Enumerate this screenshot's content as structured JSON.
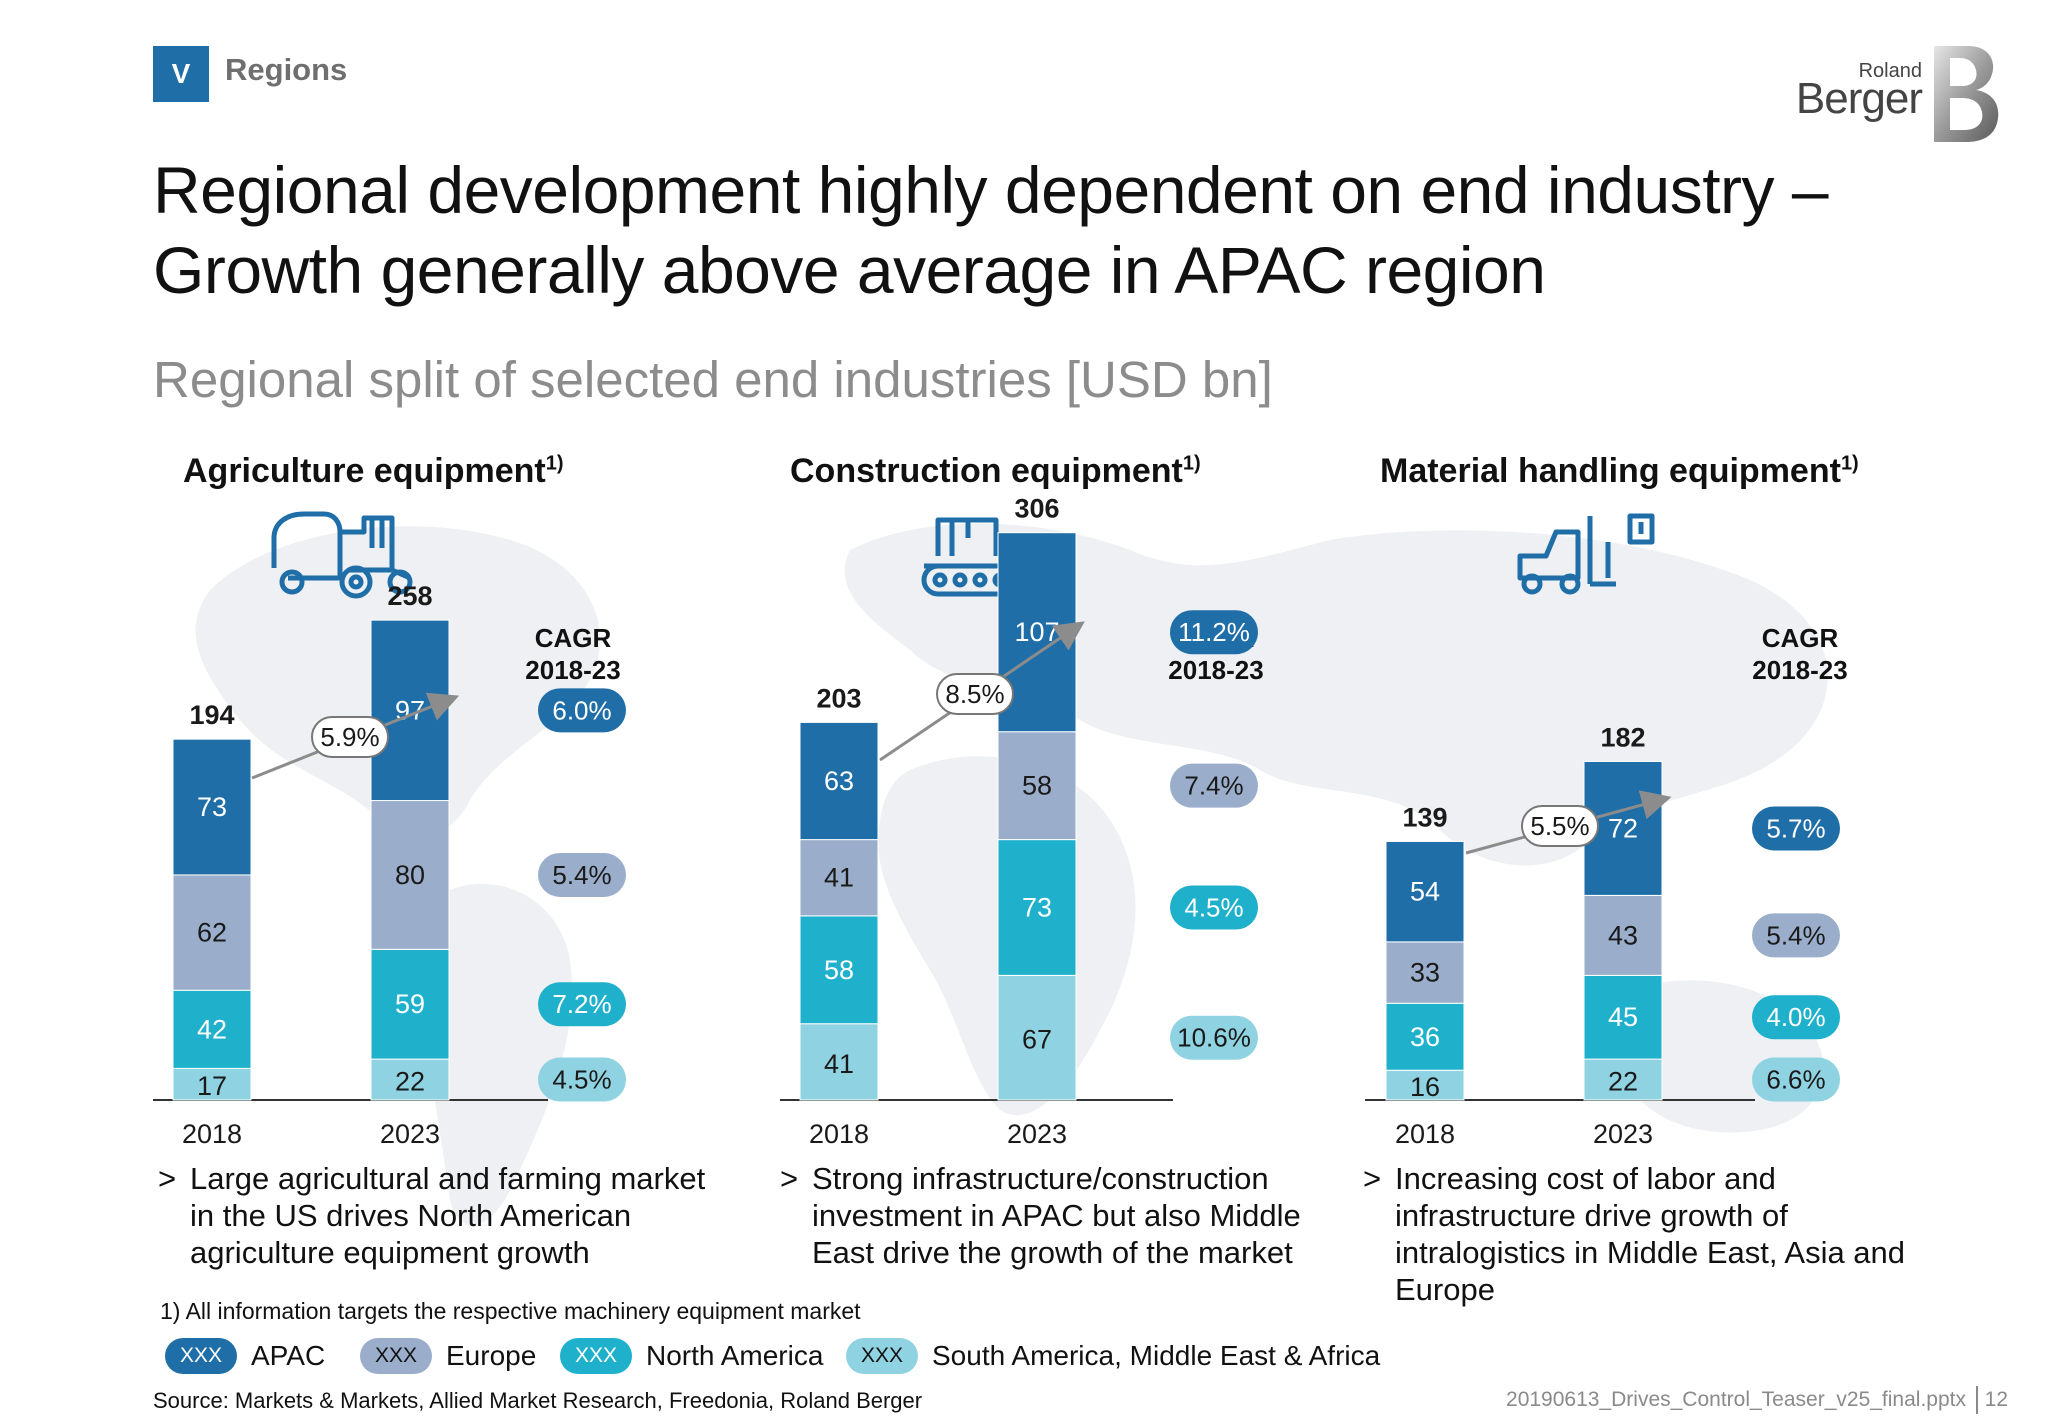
{
  "header": {
    "section_letter": "V",
    "section_name": "Regions",
    "logo_top": "Roland",
    "logo_main": "Berger"
  },
  "title": "Regional development highly dependent on end industry – Growth generally above average in APAC region",
  "subtitle": "Regional split of selected end industries [USD bn]",
  "colors": {
    "apac": "#1f6ea8",
    "europe": "#9aaecb",
    "north_america": "#1fb0cc",
    "samea": "#8fd3e2",
    "arrow": "#8c8c8c"
  },
  "panels": [
    {
      "title": "Agriculture equipment",
      "footnote_mark": "1)",
      "icon": "tractor-icon",
      "cagr_header": [
        "CAGR",
        "2018-23"
      ],
      "bullet": "Large agricultural and farming market in the US drives North American agriculture equipment growth"
    },
    {
      "title": "Construction equipment",
      "footnote_mark": "1)",
      "icon": "bulldozer-icon",
      "cagr_header": [
        "CAGR",
        "2018-23"
      ],
      "bullet": "Strong infrastructure/construction investment in APAC but also Middle East drive the growth of the market"
    },
    {
      "title": "Material handling equipment",
      "footnote_mark": "1)",
      "icon": "forklift-icon",
      "cagr_header": [
        "CAGR",
        "2018-23"
      ],
      "bullet": "Increasing cost of labor and infrastructure drive growth of intralogistics in Middle East, Asia and Europe"
    }
  ],
  "chart_data": [
    {
      "type": "bar",
      "stacked": true,
      "title": "Agriculture equipment",
      "categories": [
        "2018",
        "2023"
      ],
      "totals": [
        194,
        258
      ],
      "total_cagr": "5.9%",
      "series": [
        {
          "name": "South America, Middle East & Africa",
          "values": [
            17,
            22
          ],
          "cagr": "4.5%"
        },
        {
          "name": "North America",
          "values": [
            42,
            59
          ],
          "cagr": "7.2%"
        },
        {
          "name": "Europe",
          "values": [
            62,
            80
          ],
          "cagr": "5.4%"
        },
        {
          "name": "APAC",
          "values": [
            73,
            97
          ],
          "cagr": "6.0%"
        }
      ]
    },
    {
      "type": "bar",
      "stacked": true,
      "title": "Construction equipment",
      "categories": [
        "2018",
        "2023"
      ],
      "totals": [
        203,
        306
      ],
      "total_cagr": "8.5%",
      "series": [
        {
          "name": "South America, Middle East & Africa",
          "values": [
            41,
            67
          ],
          "cagr": "10.6%"
        },
        {
          "name": "North America",
          "values": [
            58,
            73
          ],
          "cagr": "4.5%"
        },
        {
          "name": "Europe",
          "values": [
            41,
            58
          ],
          "cagr": "7.4%"
        },
        {
          "name": "APAC",
          "values": [
            63,
            107
          ],
          "cagr": "11.2%"
        }
      ]
    },
    {
      "type": "bar",
      "stacked": true,
      "title": "Material handling equipment",
      "categories": [
        "2018",
        "2023"
      ],
      "totals": [
        139,
        182
      ],
      "total_cagr": "5.5%",
      "series": [
        {
          "name": "South America, Middle East & Africa",
          "values": [
            16,
            22
          ],
          "cagr": "6.6%"
        },
        {
          "name": "North America",
          "values": [
            36,
            45
          ],
          "cagr": "4.0%"
        },
        {
          "name": "Europe",
          "values": [
            33,
            43
          ],
          "cagr": "5.4%"
        },
        {
          "name": "APAC",
          "values": [
            54,
            72
          ],
          "cagr": "5.7%"
        }
      ]
    }
  ],
  "footnote": "1) All information targets the respective machinery equipment market",
  "legend": [
    {
      "key": "apac",
      "pill": "XXX",
      "label": "APAC"
    },
    {
      "key": "europe",
      "pill": "XXX",
      "label": "Europe"
    },
    {
      "key": "north_america",
      "pill": "XXX",
      "label": "North America"
    },
    {
      "key": "samea",
      "pill": "XXX",
      "label": "South America, Middle East & Africa"
    }
  ],
  "footer": {
    "source": "Source: Markets & Markets, Allied Market Research, Freedonia, Roland Berger",
    "filename": "20190613_Drives_Control_Teaser_v25_final.pptx",
    "page": "12"
  }
}
